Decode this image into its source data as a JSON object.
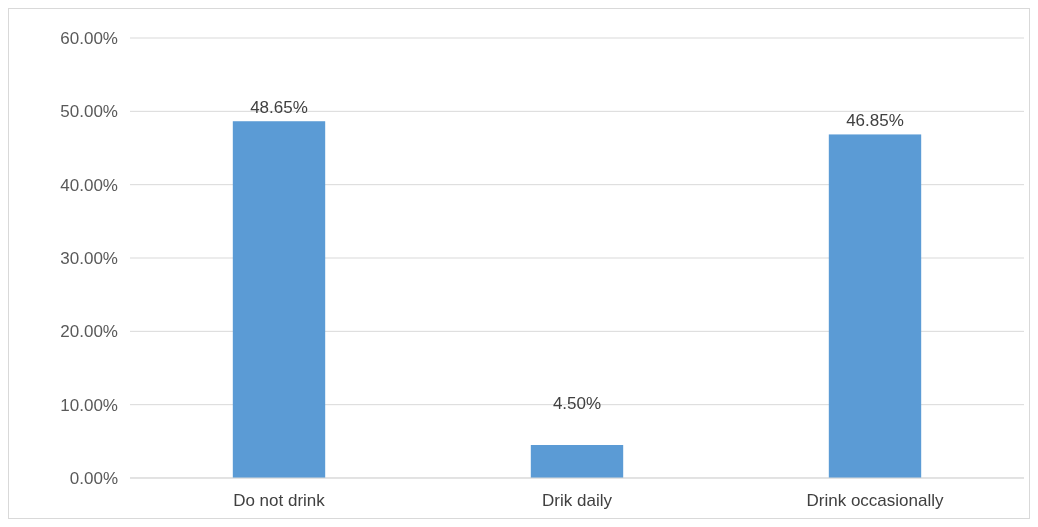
{
  "chart_data": {
    "type": "bar",
    "categories": [
      "Do not drink",
      "Drik daily",
      "Drink occasionally"
    ],
    "values": [
      48.65,
      4.5,
      46.85
    ],
    "color": "#5b9bd5",
    "value_labels": [
      "48.65%",
      "4.50%",
      "46.85%"
    ],
    "ylim": [
      0,
      60
    ],
    "yticks": [
      {
        "value": 0,
        "label": "0.00%"
      },
      {
        "value": 10,
        "label": "10.00%"
      },
      {
        "value": 20,
        "label": "20.00%"
      },
      {
        "value": 30,
        "label": "30.00%"
      },
      {
        "value": 40,
        "label": "40.00%"
      },
      {
        "value": 50,
        "label": "50.00%"
      },
      {
        "value": 60,
        "label": "60.00%"
      }
    ],
    "grid": "y"
  }
}
